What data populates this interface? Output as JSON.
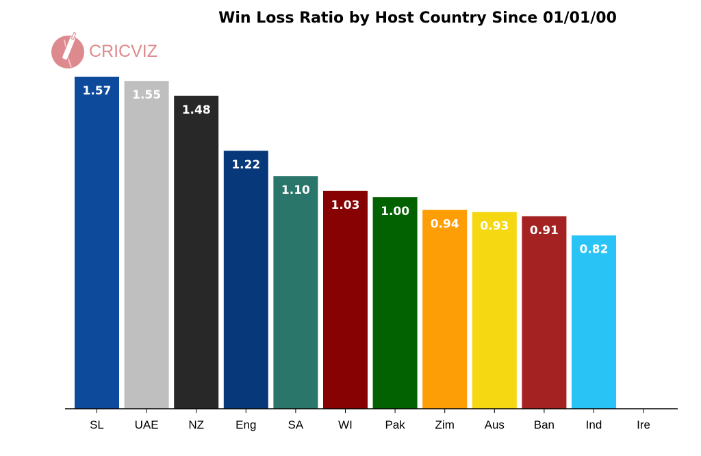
{
  "brand": {
    "logo_text": "CRICVIZ",
    "logo_color": "#dd8a8e"
  },
  "chart_data": {
    "type": "bar",
    "title": "Win Loss Ratio by Host Country Since 01/01/00",
    "xlabel": "",
    "ylabel": "",
    "ylim": [
      0,
      1.6
    ],
    "grid": false,
    "categories": [
      "SL",
      "UAE",
      "NZ",
      "Eng",
      "SA",
      "WI",
      "Pak",
      "Zim",
      "Aus",
      "Ban",
      "Ind",
      "Ire"
    ],
    "values": [
      1.57,
      1.55,
      1.48,
      1.22,
      1.1,
      1.03,
      1.0,
      0.94,
      0.93,
      0.91,
      0.82,
      null
    ],
    "data_labels": [
      "1.57",
      "1.55",
      "1.48",
      "1.22",
      "1.10",
      "1.03",
      "1.00",
      "0.94",
      "0.93",
      "0.91",
      "0.82",
      ""
    ],
    "colors": [
      "#0e4a9b",
      "#bfbfbf",
      "#292829",
      "#06387a",
      "#2a766a",
      "#870202",
      "#026202",
      "#fd9e06",
      "#f5d812",
      "#a52223",
      "#2ac3f5",
      "#ffffff"
    ]
  }
}
